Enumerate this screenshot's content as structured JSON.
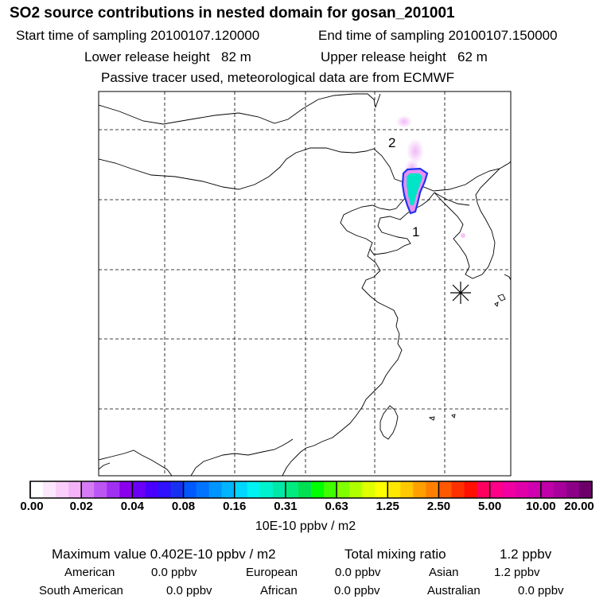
{
  "header": {
    "title": "SO2 source contributions in nested domain for gosan_201001",
    "start_label": "Start time of sampling 20100107.120000",
    "end_label": "End time of sampling 20100107.150000",
    "lower_label": "Lower release height   82 m",
    "upper_label": "Upper release height   62 m",
    "tracer_note": "Passive tracer used, meteorological data are from ECMWF"
  },
  "map": {
    "source_markers": [
      "1",
      "2"
    ],
    "receptor_icon": "asterisk-icon",
    "plume_colors": [
      "#ff88ff",
      "#2222ee",
      "#00e0d0"
    ]
  },
  "colorbar": {
    "labels": [
      "0.00",
      "0.02",
      "0.04",
      "0.08",
      "0.16",
      "0.31",
      "0.63",
      "1.25",
      "2.50",
      "5.00",
      "10.00",
      "20.00"
    ],
    "colors": [
      "#ffffff",
      "#fde7fd",
      "#f9cffa",
      "#f4b2f8",
      "#d57cf5",
      "#bb55f3",
      "#a030f2",
      "#8a00ee",
      "#6a00f8",
      "#4a00ff",
      "#2f10ff",
      "#1830f0",
      "#0058ff",
      "#0074ff",
      "#0094ff",
      "#00b4ff",
      "#00d6ff",
      "#00f2f2",
      "#00f2cc",
      "#00e8a8",
      "#00ea80",
      "#00e050",
      "#00ff00",
      "#40ff00",
      "#80ff00",
      "#b0ff00",
      "#dfff00",
      "#ffff00",
      "#ffe800",
      "#ffc800",
      "#ffa000",
      "#ff8000",
      "#ff5800",
      "#ff3000",
      "#ff1000",
      "#ff0060",
      "#ff0088",
      "#f000a0",
      "#e000a8",
      "#d000b0",
      "#c000a8",
      "#a8009c",
      "#8c0088",
      "#6c0068"
    ],
    "unit": "10E-10 ppbv / m2"
  },
  "summary": {
    "max_text": "Maximum value  0.402E-10 ppbv / m2",
    "total_text": "Total mixing ratio",
    "total_value": "1.2 ppbv",
    "rows": [
      [
        {
          "label": "American",
          "value": "0.0 ppbv"
        },
        {
          "label": "European",
          "value": "0.0 ppbv"
        },
        {
          "label": "Asian",
          "value": "1.2 ppbv"
        }
      ],
      [
        {
          "label": "South American",
          "value": "0.0 ppbv"
        },
        {
          "label": "African",
          "value": "0.0 ppbv"
        },
        {
          "label": "Australian",
          "value": "0.0 ppbv"
        }
      ]
    ]
  }
}
